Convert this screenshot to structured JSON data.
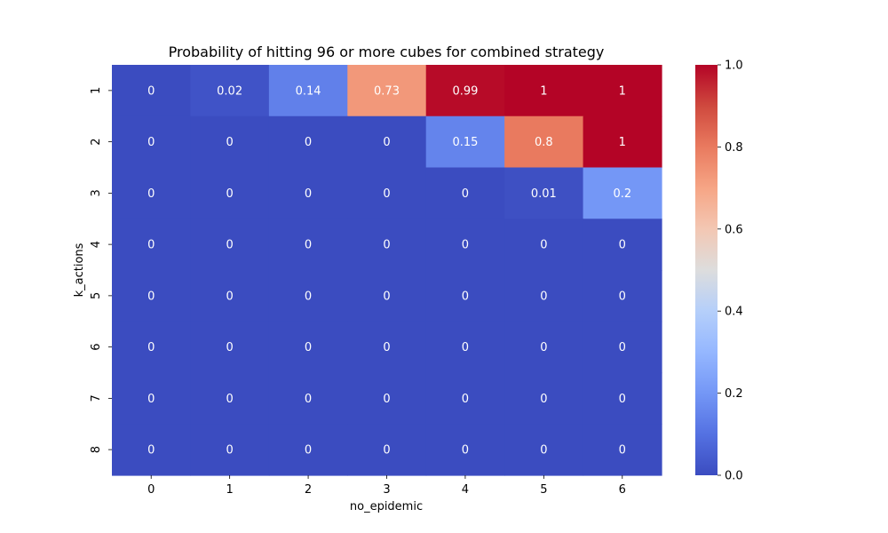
{
  "chart_data": {
    "type": "heatmap",
    "title": "Probability of hitting 96 or more cubes for combined strategy",
    "xlabel": "no_epidemic",
    "ylabel": "k_actions",
    "x_categories": [
      "0",
      "1",
      "2",
      "3",
      "4",
      "5",
      "6"
    ],
    "y_categories": [
      "1",
      "2",
      "3",
      "4",
      "5",
      "6",
      "7",
      "8"
    ],
    "values": [
      [
        0,
        0.02,
        0.14,
        0.73,
        0.99,
        1,
        1
      ],
      [
        0,
        0,
        0,
        0,
        0.15,
        0.8,
        1
      ],
      [
        0,
        0,
        0,
        0,
        0,
        0.01,
        0.2
      ],
      [
        0,
        0,
        0,
        0,
        0,
        0,
        0
      ],
      [
        0,
        0,
        0,
        0,
        0,
        0,
        0
      ],
      [
        0,
        0,
        0,
        0,
        0,
        0,
        0
      ],
      [
        0,
        0,
        0,
        0,
        0,
        0,
        0
      ],
      [
        0,
        0,
        0,
        0,
        0,
        0,
        0
      ]
    ],
    "colormap": "coolwarm",
    "vmin": 0,
    "vmax": 1,
    "colorbar_ticks": [
      "0.0",
      "0.2",
      "0.4",
      "0.6",
      "0.8",
      "1.0"
    ],
    "colors": {
      "low": "#3b4cc0",
      "mid": "#dddddd",
      "high": "#b40426",
      "annot_text": "#ffffff",
      "axis_text": "#000000"
    }
  }
}
